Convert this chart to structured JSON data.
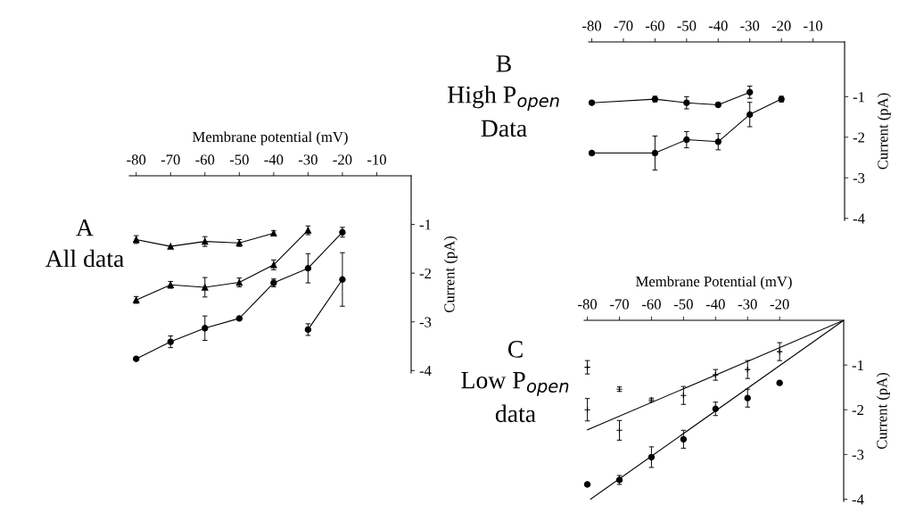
{
  "chart_data": [
    {
      "type": "line",
      "title": "A\nAll data",
      "xlabel": "Membrane potential (mV)",
      "ylabel": "Current (pA)",
      "xlim": [
        -82,
        0
      ],
      "ylim": [
        -4.05,
        0
      ],
      "xticks": [
        -80,
        -70,
        -60,
        -50,
        -40,
        -30,
        -20,
        -10
      ],
      "yticks": [
        -1,
        -2,
        -3,
        -4
      ],
      "grid": false,
      "x": [
        -80,
        -70,
        -60,
        -50,
        -40,
        -30,
        -20
      ],
      "series": [
        {
          "color": "#000000",
          "marker": "triangle",
          "values": [
            -1.31,
            -1.45,
            -1.35,
            -1.38,
            -1.18,
            null,
            null
          ],
          "errors": [
            0.08,
            null,
            0.1,
            0.07,
            0.05,
            null,
            null
          ]
        },
        {
          "color": "#000000",
          "marker": "triangle",
          "values": [
            -2.55,
            -2.24,
            -2.29,
            -2.19,
            -1.83,
            -1.12,
            null
          ],
          "errors": [
            0.07,
            0.07,
            0.2,
            0.09,
            0.1,
            0.09,
            null
          ]
        },
        {
          "color": "#000000",
          "marker": "circle",
          "values": [
            -3.76,
            -3.41,
            -3.13,
            -2.93,
            -2.2,
            -1.9,
            -1.16
          ],
          "errors": [
            null,
            0.12,
            0.25,
            null,
            0.08,
            0.3,
            0.1
          ]
        },
        {
          "color": "#000000",
          "marker": "circle",
          "values": [
            null,
            null,
            null,
            null,
            null,
            -3.16,
            -2.13
          ],
          "errors": [
            null,
            null,
            null,
            null,
            null,
            0.12,
            0.55
          ]
        }
      ]
    },
    {
      "type": "line",
      "title": "B\nHigh P$_{open}$\nData",
      "ylabel": "Current (pA)",
      "xlim": [
        -81,
        0
      ],
      "ylim": [
        -4.05,
        0.35
      ],
      "xticks": [
        -80,
        -70,
        -60,
        -50,
        -40,
        -30,
        -20,
        -10
      ],
      "yticks": [
        -1,
        -2,
        -3,
        -4
      ],
      "grid": false,
      "x": [
        -80,
        -60,
        -50,
        -40,
        -30,
        -20
      ],
      "series": [
        {
          "color": "#000000",
          "marker": "circle",
          "values": [
            -1.15,
            -1.06,
            -1.15,
            -1.2,
            -0.89,
            null
          ],
          "errors": [
            null,
            0.07,
            0.15,
            0.05,
            0.15,
            null
          ]
        },
        {
          "color": "#000000",
          "marker": "circle",
          "values": [
            -2.39,
            -2.39,
            -2.06,
            -2.11,
            -1.44,
            -1.06
          ],
          "errors": [
            0.04,
            0.42,
            0.2,
            0.2,
            0.3,
            0.07
          ]
        }
      ]
    },
    {
      "type": "scatter",
      "title": "C\nLow P$_{open}$\ndata",
      "xlabel": "Membrane Potential (mV)",
      "ylabel": "Current (pA)",
      "xlim": [
        -81,
        0
      ],
      "ylim": [
        -4.05,
        0
      ],
      "xticks": [
        -80,
        -70,
        -60,
        -50,
        -40,
        -30,
        -20
      ],
      "yticks": [
        -1,
        -2,
        -3,
        -4
      ],
      "grid": false,
      "x": [
        -80,
        -70,
        -60,
        -50,
        -40,
        -30,
        -20
      ],
      "series": [
        {
          "color": "#000000",
          "marker": "cross",
          "values": [
            -1.05,
            -1.54,
            -1.78,
            -1.68,
            -1.22,
            -1.1,
            -0.7
          ],
          "errors": [
            0.15,
            0.05,
            0.04,
            0.2,
            0.12,
            0.2,
            0.2
          ]
        },
        {
          "color": "#000000",
          "marker": "cross",
          "values": [
            -2.0,
            -2.46,
            null,
            null,
            null,
            null,
            null
          ],
          "errors": [
            0.25,
            0.22,
            null,
            null,
            null,
            null,
            null
          ]
        },
        {
          "color": "#000000",
          "marker": "circle",
          "values": [
            -3.67,
            -3.57,
            -3.06,
            -2.66,
            -1.98,
            -1.74,
            -1.4
          ],
          "errors": [
            null,
            0.1,
            0.23,
            0.2,
            0.15,
            0.2,
            null
          ]
        },
        {
          "type": "line",
          "color": "#000000",
          "marker": "none",
          "x": [
            -80,
            0
          ],
          "values": [
            -2.45,
            0
          ]
        },
        {
          "type": "line",
          "color": "#000000",
          "marker": "none",
          "x": [
            -79,
            0
          ],
          "values": [
            -4.0,
            0
          ]
        }
      ]
    }
  ]
}
